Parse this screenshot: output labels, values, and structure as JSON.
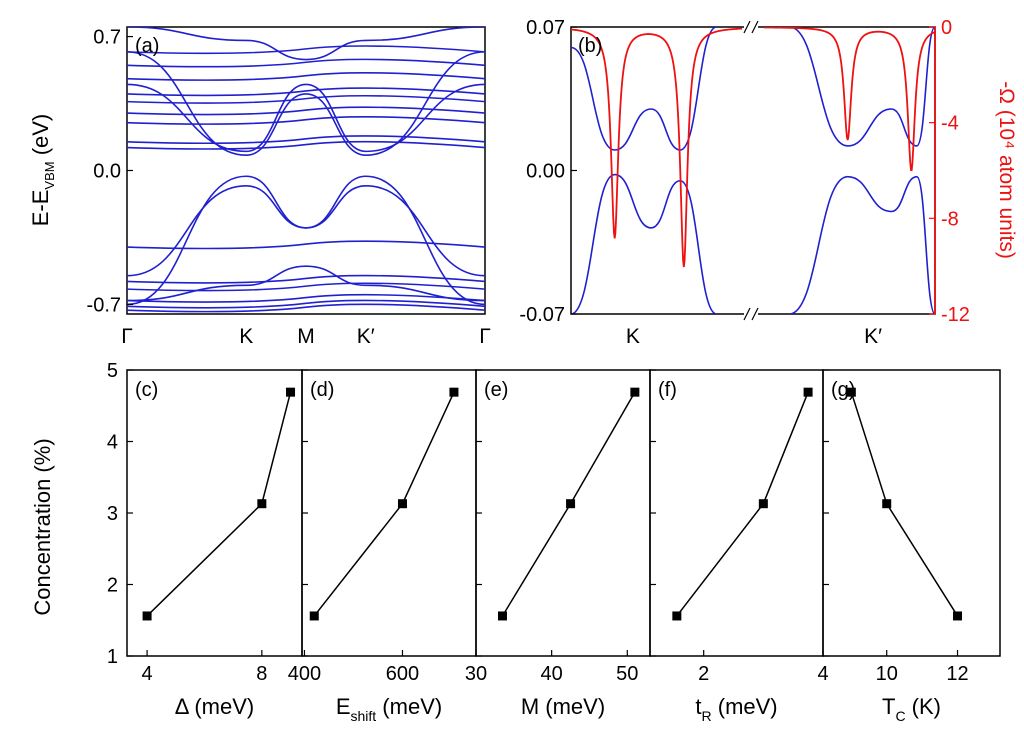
{
  "chart_data": [
    {
      "panel": "(a)",
      "type": "line",
      "description_note": "",
      "ylabel_main": "E-E",
      "ylabel_sub": "VBM",
      "ylabel_tail": " (eV)",
      "ylim": [
        -0.75,
        0.75
      ],
      "yticks": [
        "0.7",
        "0.0",
        "-0.7"
      ],
      "ytick_values": [
        0.7,
        0.0,
        -0.7
      ],
      "xticks": [
        "Γ",
        "K",
        "M",
        "K′",
        "Γ"
      ],
      "xtick_positions": [
        0,
        0.333,
        0.5,
        0.667,
        1
      ],
      "color": "#2020d0",
      "flat_bands": [
        0.62,
        0.55,
        0.48,
        0.4,
        0.36,
        0.3,
        0.25,
        0.15,
        0.12,
        -0.4,
        -0.58,
        -0.62,
        -0.68,
        -0.71,
        -0.73
      ],
      "dispersive_bands": [
        {
          "x": [
            0,
            0.333,
            0.5,
            0.667,
            1
          ],
          "y": [
            0.45,
            0.1,
            0.45,
            0.1,
            0.45
          ]
        },
        {
          "x": [
            0,
            0.333,
            0.5,
            0.667,
            1
          ],
          "y": [
            0.62,
            0.08,
            0.4,
            0.08,
            0.62
          ]
        },
        {
          "x": [
            0,
            0.333,
            0.5,
            0.667,
            1
          ],
          "y": [
            -0.7,
            -0.03,
            -0.3,
            -0.03,
            -0.7
          ]
        },
        {
          "x": [
            0,
            0.333,
            0.5,
            0.667,
            1
          ],
          "y": [
            -0.55,
            -0.08,
            -0.3,
            -0.08,
            -0.55
          ]
        },
        {
          "x": [
            0,
            0.333,
            0.5,
            0.667,
            1
          ],
          "y": [
            -0.68,
            -0.6,
            -0.5,
            -0.6,
            -0.68
          ]
        },
        {
          "x": [
            0,
            0.333,
            0.5,
            0.667,
            1
          ],
          "y": [
            0.75,
            0.68,
            0.58,
            0.68,
            0.75
          ]
        }
      ]
    },
    {
      "panel": "(b)",
      "type": "line",
      "ylim": [
        -0.07,
        0.07
      ],
      "yticks": [
        "0.07",
        "0.00",
        "-0.07"
      ],
      "ytick_values": [
        0.07,
        0.0,
        -0.07
      ],
      "xticks": [
        "K",
        "K′"
      ],
      "right_ylabel": "-Ω (10⁴ atom units)",
      "right_ylim": [
        -12,
        0
      ],
      "right_yticks": [
        "0",
        "-4",
        "-8",
        "-12"
      ],
      "right_ytick_values": [
        0,
        -4,
        -8,
        -12
      ],
      "band_color": "#2020d0",
      "curvature_color": "#ee1111",
      "K_side": {
        "conduction_1": {
          "x": [
            0.0,
            0.12,
            0.22,
            0.3,
            0.4
          ],
          "y": [
            0.06,
            0.01,
            0.03,
            0.01,
            0.07
          ]
        },
        "valence_1": {
          "x": [
            0.0,
            0.12,
            0.22,
            0.3,
            0.4
          ],
          "y": [
            -0.07,
            -0.002,
            -0.028,
            -0.005,
            -0.07
          ]
        },
        "peaks": [
          {
            "x": 0.12,
            "depth": -8.8
          },
          {
            "x": 0.31,
            "depth": -10.0
          }
        ]
      },
      "Kp_side": {
        "conduction_1": {
          "x": [
            0.6,
            0.76,
            0.88,
            0.95,
            1.0
          ],
          "y": [
            0.07,
            0.012,
            0.03,
            0.012,
            0.07
          ]
        },
        "valence_1": {
          "x": [
            0.6,
            0.76,
            0.88,
            0.95,
            1.0
          ],
          "y": [
            -0.07,
            -0.003,
            -0.02,
            -0.003,
            -0.07
          ]
        },
        "peaks": [
          {
            "x": 0.76,
            "depth": -4.7
          },
          {
            "x": 0.935,
            "depth": -6.0
          }
        ]
      }
    },
    {
      "panel": "(c)",
      "type": "line",
      "xlabel_main": "Δ (meV)",
      "xlim": [
        3.3,
        9.4
      ],
      "xticks": [
        "4",
        "8"
      ],
      "xtick_values": [
        4,
        8
      ],
      "x": [
        4.0,
        8.0,
        9.0
      ],
      "y": [
        1.56,
        3.13,
        4.69
      ]
    },
    {
      "panel": "(d)",
      "type": "line",
      "xlabel_main": "E",
      "xlabel_sub": "shift",
      "xlabel_tail": " (meV)",
      "xlim": [
        395,
        750
      ],
      "xticks": [
        "400",
        "600"
      ],
      "xtick_values": [
        400,
        600
      ],
      "x": [
        420,
        600,
        705
      ],
      "y": [
        1.56,
        3.13,
        4.69
      ]
    },
    {
      "panel": "(e)",
      "type": "line",
      "xlabel_main": "M (meV)",
      "xlim": [
        30,
        53
      ],
      "xticks": [
        "30",
        "40",
        "50"
      ],
      "xtick_values": [
        30,
        40,
        50
      ],
      "x": [
        33.5,
        42.5,
        51
      ],
      "y": [
        1.56,
        3.13,
        4.69
      ]
    },
    {
      "panel": "(f)",
      "type": "line",
      "xlabel_main": "t",
      "xlabel_sub": "R",
      "xlabel_tail": " (meV)",
      "xlim": [
        1.1,
        4.0
      ],
      "xticks": [
        "2",
        "4"
      ],
      "xtick_values": [
        2,
        4
      ],
      "x": [
        1.55,
        3.0,
        3.75
      ],
      "y": [
        1.56,
        3.13,
        4.69
      ]
    },
    {
      "panel": "(g)",
      "type": "line",
      "xlabel_main": "T",
      "xlabel_sub": "C",
      "xlabel_tail": " (K)",
      "xlim": [
        8.2,
        13.2
      ],
      "xticks": [
        "10",
        "12"
      ],
      "xtick_values": [
        10,
        12
      ],
      "x": [
        9.0,
        10.0,
        12.0
      ],
      "y": [
        4.69,
        3.13,
        1.56
      ]
    }
  ],
  "bottom_row": {
    "ylabel": "Concentration (%)",
    "ylim": [
      1,
      5
    ],
    "yticks": [
      "1",
      "2",
      "3",
      "4",
      "5"
    ],
    "ytick_values": [
      1,
      2,
      3,
      4,
      5
    ],
    "extra_tick_between_d_e": "400",
    "extra_tick_between_e_f": "30",
    "extra_tick_between_f_g": "4"
  }
}
